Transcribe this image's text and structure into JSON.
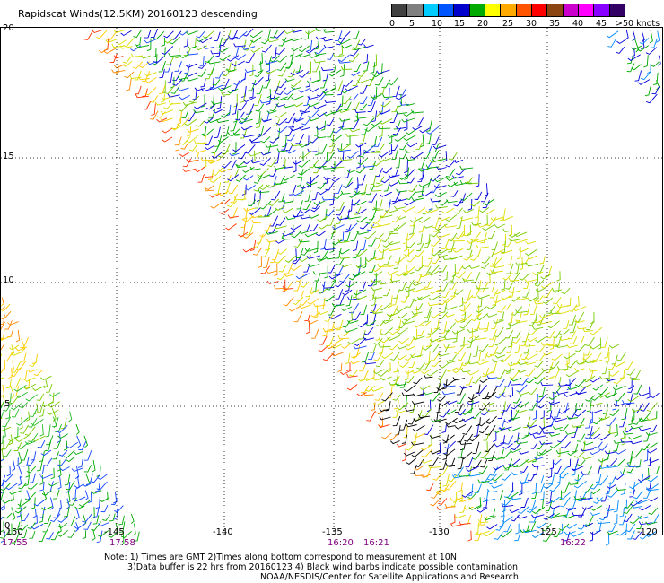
{
  "title": "Rapidscat Winds(12.5KM) 20160123 descending",
  "colorbar": {
    "swatches": [
      "#404040",
      "#7f7f7f",
      "#00ccff",
      "#0055ff",
      "#0000cc",
      "#00aa00",
      "#ffff00",
      "#ffaa00",
      "#ff5500",
      "#ff0000",
      "#8b4513",
      "#cc00cc",
      "#ff00ff",
      "#8800ff",
      "#330066"
    ],
    "labels": [
      "0",
      "5",
      "10",
      "15",
      "20",
      "25",
      "30",
      "35",
      "40",
      "45",
      ">50 knots"
    ]
  },
  "y_axis": {
    "labels": [
      "20",
      "15",
      "10",
      "5",
      "0"
    ]
  },
  "x_axis": {
    "labels": [
      "-150",
      "-145",
      "-140",
      "-135",
      "-130",
      "-125",
      "-120"
    ]
  },
  "times": [
    "17:55",
    "17:58",
    "16:20",
    "16:21",
    "16:22"
  ],
  "notes": [
    "Note: 1) Times are GMT 2)Times along bottom correspond to measurement at 10N",
    "3)Data buffer is 22 hrs from 20160123 4) Black wind barbs indicate possible contamination",
    "NOAA/NESDIS/Center for Satellite Applications and Research"
  ]
}
